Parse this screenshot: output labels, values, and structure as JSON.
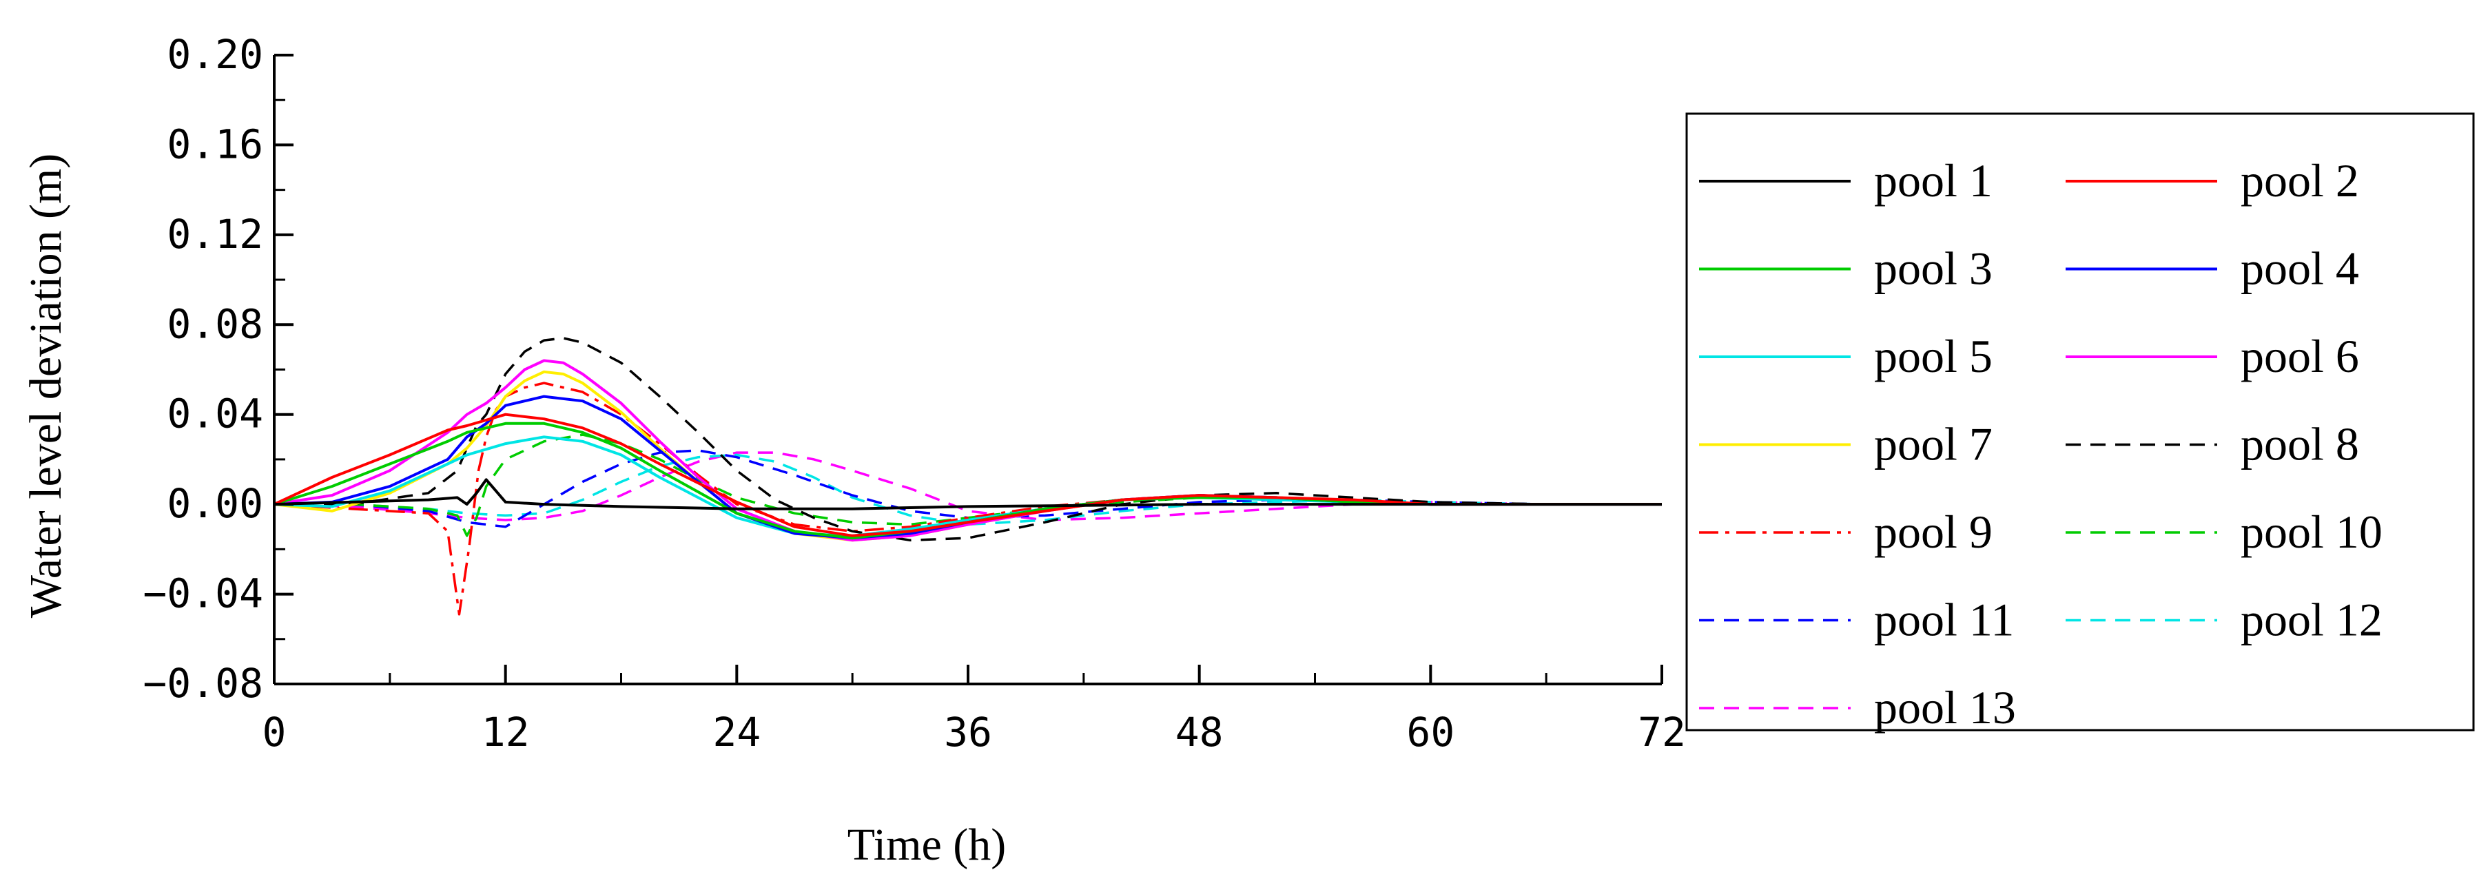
{
  "chart_data": {
    "type": "line",
    "title": "",
    "xlabel": "Time (h)",
    "ylabel": "Water level deviation (m)",
    "xlim": [
      0,
      72
    ],
    "ylim": [
      -0.08,
      0.2
    ],
    "xticks": [
      0,
      12,
      24,
      36,
      48,
      60,
      72
    ],
    "xtick_labels": [
      "0",
      "12",
      "24",
      "36",
      "48",
      "60",
      "72"
    ],
    "yticks": [
      -0.08,
      -0.04,
      0.0,
      0.04,
      0.08,
      0.12,
      0.16,
      0.2
    ],
    "ytick_labels": [
      "−0.08",
      "−0.04",
      "0.00",
      "0.04",
      "0.08",
      "0.12",
      "0.16",
      "0.20"
    ],
    "legend_position": "right",
    "series": [
      {
        "name": "pool 1",
        "color": "#000000",
        "style": "solid",
        "x": [
          0,
          4,
          8,
          9.5,
          10,
          10.5,
          11,
          11.5,
          12,
          14,
          18,
          24,
          30,
          36,
          48,
          60,
          72
        ],
        "y": [
          0,
          0.001,
          0.002,
          0.003,
          0,
          0.005,
          0.011,
          0.006,
          0.001,
          0,
          -0.001,
          -0.002,
          -0.002,
          -0.001,
          0,
          0,
          0
        ]
      },
      {
        "name": "pool 2",
        "color": "#ff0000",
        "style": "solid",
        "x": [
          0,
          3,
          6,
          9,
          10,
          12,
          14,
          16,
          18,
          20,
          24,
          27,
          30,
          33,
          36,
          40,
          44,
          48,
          52,
          56,
          60,
          66,
          72
        ],
        "y": [
          0,
          0.012,
          0.022,
          0.033,
          0.035,
          0.04,
          0.038,
          0.034,
          0.027,
          0.018,
          0.001,
          -0.01,
          -0.014,
          -0.012,
          -0.008,
          -0.003,
          0.002,
          0.004,
          0.003,
          0.002,
          0,
          0,
          0
        ]
      },
      {
        "name": "pool 3",
        "color": "#00cc00",
        "style": "solid",
        "x": [
          0,
          3,
          6,
          9,
          10,
          12,
          14,
          16,
          18,
          20,
          24,
          27,
          30,
          33,
          36,
          40,
          44,
          48,
          52,
          56,
          60,
          66,
          72
        ],
        "y": [
          0,
          0.008,
          0.018,
          0.028,
          0.032,
          0.036,
          0.036,
          0.032,
          0.025,
          0.015,
          -0.004,
          -0.012,
          -0.015,
          -0.012,
          -0.008,
          -0.002,
          0.002,
          0.003,
          0.003,
          0.001,
          0,
          0,
          0
        ]
      },
      {
        "name": "pool 4",
        "color": "#0000ff",
        "style": "solid",
        "x": [
          0,
          3,
          6,
          9,
          10,
          11,
          12,
          14,
          16,
          18,
          20,
          22,
          24,
          27,
          30,
          33,
          36,
          40,
          44,
          48,
          52,
          56,
          60,
          66,
          72
        ],
        "y": [
          0,
          0.001,
          0.008,
          0.02,
          0.03,
          0.036,
          0.044,
          0.048,
          0.046,
          0.038,
          0.024,
          0.01,
          -0.004,
          -0.013,
          -0.015,
          -0.013,
          -0.008,
          -0.002,
          0.002,
          0.004,
          0.003,
          0.001,
          0,
          0,
          0
        ]
      },
      {
        "name": "pool 5",
        "color": "#00e5e5",
        "style": "solid",
        "x": [
          0,
          3,
          6,
          9,
          10,
          12,
          14,
          16,
          18,
          20,
          24,
          27,
          30,
          33,
          36,
          40,
          44,
          48,
          52,
          56,
          60,
          66,
          72
        ],
        "y": [
          0,
          -0.001,
          0.006,
          0.018,
          0.022,
          0.027,
          0.03,
          0.028,
          0.022,
          0.012,
          -0.006,
          -0.013,
          -0.014,
          -0.011,
          -0.007,
          -0.002,
          0.002,
          0.003,
          0.002,
          0.001,
          0,
          0,
          0
        ]
      },
      {
        "name": "pool 6",
        "color": "#ff00ff",
        "style": "solid",
        "x": [
          0,
          3,
          6,
          9,
          10,
          11,
          12,
          13,
          14,
          15,
          16,
          18,
          20,
          22,
          24,
          27,
          30,
          33,
          36,
          40,
          44,
          48,
          52,
          56,
          60,
          66,
          72
        ],
        "y": [
          0,
          0.004,
          0.015,
          0.032,
          0.04,
          0.045,
          0.052,
          0.06,
          0.064,
          0.063,
          0.058,
          0.045,
          0.028,
          0.012,
          -0.002,
          -0.012,
          -0.016,
          -0.014,
          -0.009,
          -0.003,
          0.002,
          0.004,
          0.003,
          0.001,
          0,
          0,
          0
        ]
      },
      {
        "name": "pool 7",
        "color": "#ffee00",
        "style": "solid",
        "x": [
          0,
          3,
          6,
          9,
          10,
          11,
          12,
          13,
          14,
          15,
          16,
          18,
          20,
          22,
          24,
          27,
          30,
          33,
          36,
          40,
          44,
          48,
          52,
          56,
          60,
          66,
          72
        ],
        "y": [
          0,
          -0.003,
          0.005,
          0.018,
          0.025,
          0.035,
          0.048,
          0.055,
          0.059,
          0.058,
          0.054,
          0.041,
          0.025,
          0.01,
          -0.004,
          -0.013,
          -0.016,
          -0.014,
          -0.009,
          -0.003,
          0.002,
          0.004,
          0.003,
          0.001,
          0,
          0,
          0
        ]
      },
      {
        "name": "pool 8",
        "color": "#000000",
        "style": "dashed",
        "x": [
          0,
          4,
          8,
          9.5,
          10.5,
          11,
          12,
          13,
          14,
          15,
          16,
          18,
          20,
          22,
          24,
          26,
          28,
          30,
          33,
          36,
          40,
          44,
          48,
          52,
          56,
          60,
          66,
          72
        ],
        "y": [
          0,
          0,
          0.005,
          0.015,
          0.035,
          0.04,
          0.058,
          0.068,
          0.073,
          0.074,
          0.072,
          0.063,
          0.048,
          0.032,
          0.015,
          0.002,
          -0.006,
          -0.012,
          -0.016,
          -0.015,
          -0.008,
          0,
          0.004,
          0.005,
          0.003,
          0.001,
          0,
          0
        ]
      },
      {
        "name": "pool 9",
        "color": "#ff0000",
        "style": "dashdot",
        "x": [
          0,
          4,
          8,
          9,
          9.6,
          10.1,
          10.6,
          11,
          11.5,
          12,
          13,
          14,
          16,
          18,
          20,
          22,
          24,
          27,
          30,
          33,
          36,
          40,
          44,
          48,
          52,
          56,
          60,
          66,
          72
        ],
        "y": [
          0,
          -0.002,
          -0.004,
          -0.012,
          -0.049,
          -0.02,
          0.015,
          0.03,
          0.042,
          0.048,
          0.052,
          0.054,
          0.05,
          0.04,
          0.027,
          0.013,
          0,
          -0.009,
          -0.012,
          -0.01,
          -0.006,
          -0.001,
          0.002,
          0.003,
          0.003,
          0.001,
          0,
          0,
          0
        ]
      },
      {
        "name": "pool 10",
        "color": "#00cc00",
        "style": "dashed",
        "x": [
          0,
          4,
          8,
          9.5,
          10,
          10.5,
          11,
          12,
          14,
          16,
          18,
          20,
          22,
          24,
          27,
          30,
          33,
          36,
          40,
          44,
          48,
          52,
          56,
          60,
          66,
          72
        ],
        "y": [
          0,
          0,
          -0.002,
          -0.005,
          -0.014,
          -0.006,
          0.008,
          0.02,
          0.028,
          0.031,
          0.027,
          0.02,
          0.011,
          0.003,
          -0.004,
          -0.008,
          -0.009,
          -0.006,
          -0.002,
          0.001,
          0.003,
          0.002,
          0.001,
          0,
          0,
          0
        ]
      },
      {
        "name": "pool 11",
        "color": "#0000ff",
        "style": "dashed",
        "x": [
          0,
          4,
          8,
          10,
          12,
          14,
          16,
          18,
          20,
          22,
          24,
          27,
          30,
          33,
          36,
          40,
          44,
          48,
          52,
          56,
          60,
          66,
          72
        ],
        "y": [
          0,
          0,
          -0.003,
          -0.008,
          -0.01,
          0,
          0.01,
          0.018,
          0.023,
          0.024,
          0.021,
          0.013,
          0.004,
          -0.003,
          -0.006,
          -0.005,
          -0.002,
          0.001,
          0.002,
          0.002,
          0.001,
          0,
          0
        ]
      },
      {
        "name": "pool 12",
        "color": "#00e5e5",
        "style": "dashed",
        "x": [
          0,
          4,
          8,
          10,
          12,
          14,
          16,
          18,
          20,
          22,
          24,
          26,
          28,
          30,
          33,
          36,
          40,
          44,
          48,
          52,
          56,
          60,
          66,
          72
        ],
        "y": [
          0,
          0,
          -0.002,
          -0.004,
          -0.005,
          -0.004,
          0.002,
          0.01,
          0.017,
          0.021,
          0.022,
          0.019,
          0.012,
          0.003,
          -0.005,
          -0.009,
          -0.007,
          -0.003,
          0,
          0.001,
          0.002,
          0.001,
          0,
          0
        ]
      },
      {
        "name": "pool 13",
        "color": "#ff00ff",
        "style": "dashed",
        "x": [
          0,
          4,
          8,
          10,
          12,
          14,
          16,
          18,
          20,
          22,
          24,
          26,
          28,
          30,
          33,
          36,
          40,
          44,
          48,
          52,
          56,
          60,
          66,
          72
        ],
        "y": [
          0,
          -0.001,
          -0.004,
          -0.006,
          -0.007,
          -0.006,
          -0.003,
          0.004,
          0.012,
          0.019,
          0.023,
          0.023,
          0.02,
          0.015,
          0.007,
          -0.003,
          -0.007,
          -0.006,
          -0.004,
          -0.002,
          0,
          0.001,
          0,
          0
        ]
      }
    ]
  }
}
